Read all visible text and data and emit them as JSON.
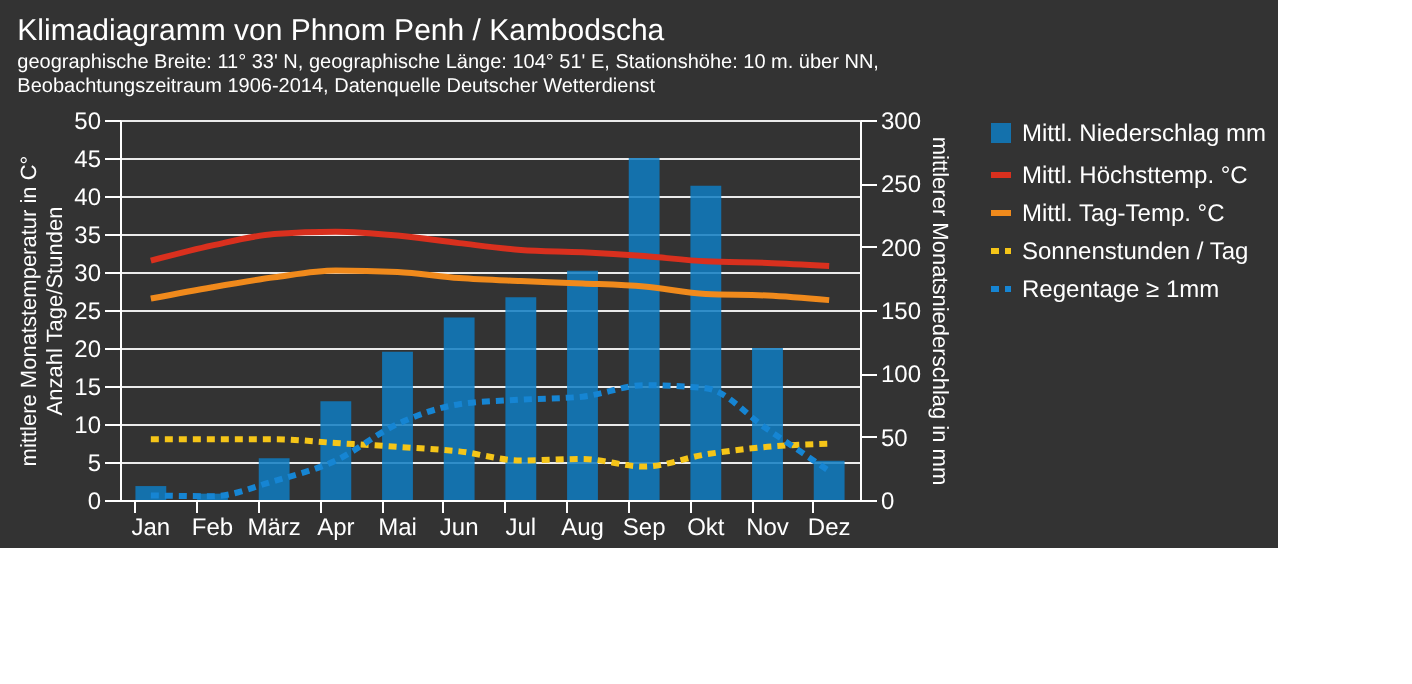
{
  "chart_data": {
    "type": "bar",
    "title": "Klimadiagramm von Phnom Penh / Kambodscha",
    "subtitle": [
      "geographische Breite: 11° 33' N, geographische Länge: 104° 51' E, Stationshöhe: 10 m. über NN,",
      "Beobachtungszeitraum 1906-2014, Datenquelle Deutscher Wetterdienst"
    ],
    "ylabel": "mittlere Monatstemperatur in C°\nAnzahl Tage/Stunden",
    "y2label": "mittlerer Monatsniederschlag in mm",
    "categories": [
      "Jan",
      "Feb",
      "März",
      "Apr",
      "Mai",
      "Jun",
      "Jul",
      "Aug",
      "Sep",
      "Okt",
      "Nov",
      "Dez"
    ],
    "series": [
      {
        "name": "Mittl. Niederschlag mm",
        "axis": "y2",
        "color": "#0f7dc2",
        "values": [
          11,
          5,
          33,
          78,
          117,
          144,
          160,
          181,
          270,
          248,
          120,
          31
        ]
      },
      {
        "name": "Mittl. Höchsttemp. °C",
        "type": "line",
        "line_style": "solid",
        "color": "#d9301e",
        "values": [
          31.5,
          33.5,
          35,
          35.3,
          34.8,
          33.8,
          32.9,
          32.6,
          32.1,
          31.4,
          31.2,
          30.8
        ]
      },
      {
        "name": "Mittl. Tag-Temp. °C",
        "type": "line",
        "line_style": "solid",
        "color": "#f08a1c",
        "values": [
          26.5,
          28,
          29.3,
          30.2,
          30,
          29.2,
          28.8,
          28.5,
          28.1,
          27.1,
          26.9,
          26.3
        ]
      },
      {
        "name": "Sonnenstunden / Tag",
        "type": "line",
        "line_style": "dashed",
        "color": "#f5c518",
        "values": [
          8,
          8,
          8,
          7.5,
          7,
          6.4,
          5.2,
          5.4,
          4.4,
          6,
          7,
          7.4
        ]
      },
      {
        "name": "Regentage ≥ 1mm",
        "type": "line",
        "line_style": "dashed",
        "color": "#1685d3",
        "values": [
          0.6,
          0.5,
          2.5,
          5.2,
          10,
          12.6,
          13.2,
          13.6,
          15.1,
          14.7,
          9.3,
          3.8
        ]
      }
    ],
    "ylim": [
      0,
      50
    ],
    "yticks": [
      0,
      5,
      10,
      15,
      20,
      25,
      30,
      35,
      40,
      45,
      50
    ],
    "y2lim": [
      0,
      300
    ],
    "y2ticks": [
      0,
      50,
      100,
      150,
      200,
      250,
      300
    ],
    "grid": "y",
    "legend": "right",
    "marker": "none"
  }
}
